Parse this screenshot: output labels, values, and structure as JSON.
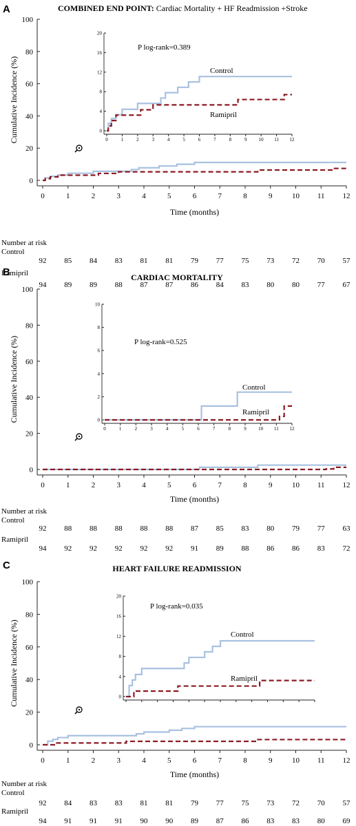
{
  "colors": {
    "control": "#a9c1e0",
    "ramipril": "#8b1a22",
    "axis": "#222222"
  },
  "icons": {
    "zoom_icon": "magnifier-icon"
  },
  "chart_data": [
    {
      "type": "line",
      "panel": "A",
      "title_bold": "COMBINED END POINT:",
      "title_rest": " Cardiac Mortality + HF Readmission +Stroke",
      "xlabel": "Time (months)",
      "ylabel": "Cumulative Incidence (%)",
      "xlim": [
        0,
        12
      ],
      "ylim": [
        0,
        100
      ],
      "x_ticks": [
        "0",
        "1",
        "2",
        "3",
        "4",
        "5",
        "6",
        "7",
        "8",
        "9",
        "10",
        "11",
        "12"
      ],
      "y_ticks": [
        "0",
        "20",
        "40",
        "60",
        "80",
        "100"
      ],
      "series": [
        {
          "name": "Control",
          "style": "solid",
          "steps": [
            [
              0,
              0
            ],
            [
              0.1,
              1.5
            ],
            [
              0.3,
              2.5
            ],
            [
              0.6,
              3.3
            ],
            [
              1.0,
              4.4
            ],
            [
              2.0,
              5.6
            ],
            [
              3.5,
              6.7
            ],
            [
              3.8,
              7.8
            ],
            [
              4.0,
              7.8
            ],
            [
              4.6,
              8.9
            ],
            [
              5.3,
              10.0
            ],
            [
              5.5,
              10.0
            ],
            [
              6.0,
              11.1
            ],
            [
              12,
              11.1
            ]
          ]
        },
        {
          "name": "Ramipril",
          "style": "dashed",
          "steps": [
            [
              0,
              0
            ],
            [
              0.1,
              1.0
            ],
            [
              0.3,
              2.1
            ],
            [
              0.6,
              3.2
            ],
            [
              1.0,
              3.2
            ],
            [
              2.2,
              4.3
            ],
            [
              3.0,
              5.3
            ],
            [
              3.3,
              5.3
            ],
            [
              8.5,
              6.4
            ],
            [
              11.5,
              7.4
            ],
            [
              12,
              7.4
            ]
          ]
        }
      ],
      "inset": {
        "xlim": [
          0,
          12
        ],
        "ylim": [
          0,
          20
        ],
        "x_ticks": [
          "0",
          "1",
          "2",
          "3",
          "4",
          "5",
          "6",
          "7",
          "8",
          "9",
          "10",
          "11",
          "12"
        ],
        "y_ticks": [
          "0",
          "4",
          "8",
          "12",
          "16",
          "20"
        ],
        "annotation": "P log-rank=0.389",
        "labels": {
          "control": "Control",
          "ramipril": "Ramipril"
        }
      },
      "risk_table": {
        "header": "Number at risk",
        "rows": [
          {
            "label": "Control",
            "values": [
              "92",
              "85",
              "84",
              "83",
              "81",
              "81",
              "79",
              "77",
              "75",
              "73",
              "72",
              "70",
              "57"
            ]
          },
          {
            "label": "Ramipril",
            "values": [
              "94",
              "89",
              "89",
              "88",
              "87",
              "87",
              "86",
              "84",
              "83",
              "80",
              "80",
              "77",
              "67"
            ]
          }
        ]
      }
    },
    {
      "type": "line",
      "panel": "B",
      "title_bold": "CARDIAC MORTALITY",
      "title_rest": "",
      "xlabel": "Time (months)",
      "ylabel": "Cumulative Incidence (%)",
      "xlim": [
        0,
        12
      ],
      "ylim": [
        0,
        100
      ],
      "x_ticks": [
        "0",
        "1",
        "2",
        "3",
        "4",
        "5",
        "6",
        "7",
        "8",
        "9",
        "10",
        "11",
        "12"
      ],
      "y_ticks": [
        "0",
        "20",
        "40",
        "60",
        "80",
        "100"
      ],
      "series": [
        {
          "name": "Control",
          "style": "solid",
          "steps": [
            [
              0,
              0
            ],
            [
              6.2,
              1.2
            ],
            [
              8.5,
              2.4
            ],
            [
              12,
              2.4
            ]
          ]
        },
        {
          "name": "Ramipril",
          "style": "dashed",
          "steps": [
            [
              0,
              0
            ],
            [
              11.2,
              0.3
            ],
            [
              11.5,
              1.2
            ],
            [
              12,
              1.2
            ]
          ]
        }
      ],
      "inset": {
        "xlim": [
          0,
          12
        ],
        "ylim": [
          0,
          10
        ],
        "x_ticks": [
          "0",
          "1",
          "2",
          "3",
          "4",
          "5",
          "6",
          "7",
          "8",
          "9",
          "10",
          "11",
          "12"
        ],
        "y_ticks": [
          "0",
          "2",
          "4",
          "6",
          "8",
          "10"
        ],
        "annotation": "P log-rank=0.525",
        "labels": {
          "control": "Control",
          "ramipril": "Ramipril"
        }
      },
      "risk_table": {
        "header": "Number at risk",
        "rows": [
          {
            "label": "Control",
            "values": [
              "92",
              "88",
              "88",
              "88",
              "88",
              "88",
              "87",
              "85",
              "83",
              "80",
              "79",
              "77",
              "63"
            ]
          },
          {
            "label": "Ramipril",
            "values": [
              "94",
              "92",
              "92",
              "92",
              "92",
              "92",
              "91",
              "89",
              "88",
              "86",
              "86",
              "83",
              "72"
            ]
          }
        ]
      }
    },
    {
      "type": "line",
      "panel": "C",
      "title_bold": "HEART FAILURE READMISSION",
      "title_rest": "",
      "xlabel": "Time (months)",
      "ylabel": "Cumulative Incidence (%)",
      "xlim": [
        0,
        12
      ],
      "ylim": [
        0,
        100
      ],
      "x_ticks": [
        "0",
        "1",
        "2",
        "3",
        "4",
        "5",
        "6",
        "7",
        "8",
        "9",
        "10",
        "11",
        "12"
      ],
      "y_ticks": [
        "0",
        "20",
        "40",
        "60",
        "80",
        "100"
      ],
      "series": [
        {
          "name": "Control",
          "style": "solid",
          "steps": [
            [
              0,
              0
            ],
            [
              0.2,
              2.2
            ],
            [
              0.4,
              3.3
            ],
            [
              0.6,
              4.4
            ],
            [
              1.0,
              5.6
            ],
            [
              3.7,
              6.7
            ],
            [
              4.0,
              7.8
            ],
            [
              5.0,
              8.9
            ],
            [
              5.5,
              10.0
            ],
            [
              6.0,
              11.1
            ],
            [
              12,
              11.1
            ]
          ]
        },
        {
          "name": "Ramipril",
          "style": "dashed",
          "steps": [
            [
              0,
              0
            ],
            [
              0.5,
              1.1
            ],
            [
              1.0,
              1.1
            ],
            [
              3.3,
              2.1
            ],
            [
              8.5,
              3.2
            ],
            [
              12,
              3.2
            ]
          ]
        }
      ],
      "inset": {
        "xlim": [
          0,
          12
        ],
        "ylim": [
          0,
          20
        ],
        "x_ticks": [],
        "y_ticks": [
          "0",
          "4",
          "8",
          "12",
          "16",
          "20"
        ],
        "annotation": "P log-rank=0.035",
        "labels": {
          "control": "Control",
          "ramipril": "Ramipril"
        }
      },
      "risk_table": {
        "header": "Number at risk",
        "rows": [
          {
            "label": "Control",
            "values": [
              "92",
              "84",
              "83",
              "83",
              "81",
              "81",
              "79",
              "77",
              "75",
              "73",
              "72",
              "70",
              "57"
            ]
          },
          {
            "label": "Ramipril",
            "values": [
              "94",
              "91",
              "91",
              "91",
              "90",
              "90",
              "89",
              "87",
              "86",
              "83",
              "83",
              "80",
              "69"
            ]
          }
        ]
      }
    }
  ]
}
